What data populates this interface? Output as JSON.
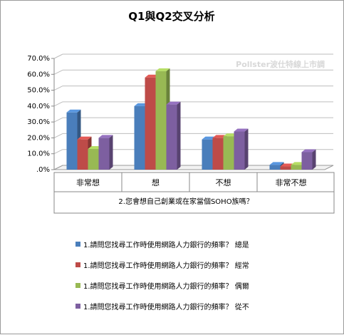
{
  "watermark": "Pollster波仕特線上市調",
  "chart_data": {
    "type": "bar",
    "title": "Q1與Q2交叉分析",
    "xlabel": "2.您會想自己創業或在家當個SOHO族嗎？",
    "ylabel": "",
    "categories": [
      "非常想",
      "想",
      "不想",
      "非常不想"
    ],
    "yticks": [
      ".0%",
      "10.0%",
      "20.0%",
      "30.0%",
      "40.0%",
      "50.0%",
      "60.0%",
      "70.0%"
    ],
    "ylim": [
      0,
      70
    ],
    "grid": true,
    "legend_position": "bottom",
    "series": [
      {
        "name": "1.請問您找尋工作時使用網路人力銀行的頻率？ 總是",
        "color": "#4a7ebb",
        "values": [
          36,
          40,
          19,
          3
        ]
      },
      {
        "name": "1.請問您找尋工作時使用網路人力銀行的頻率？ 經常",
        "color": "#be4b48",
        "values": [
          19,
          58,
          20,
          2
        ]
      },
      {
        "name": "1.請問您找尋工作時使用網路人力銀行的頻率？ 偶爾",
        "color": "#98b954",
        "values": [
          13,
          62,
          21,
          3
        ]
      },
      {
        "name": "1.請問您找尋工作時使用網路人力銀行的頻率？ 從不",
        "color": "#7d5fa0",
        "values": [
          20,
          41,
          24,
          11
        ]
      }
    ]
  }
}
